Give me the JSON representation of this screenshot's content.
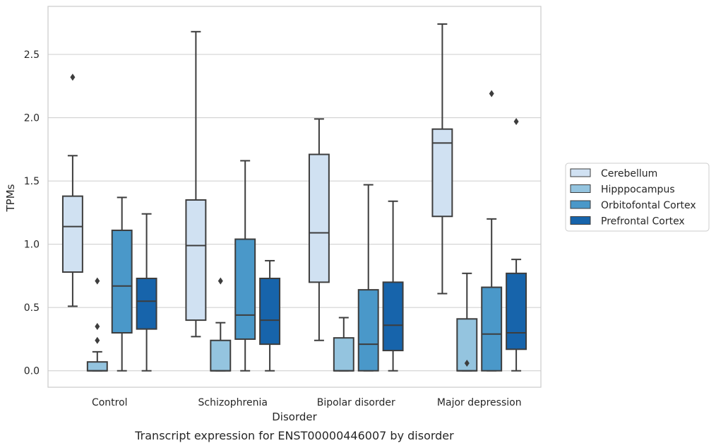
{
  "caption": "Transcript expression for ENST00000446007 by disorder",
  "chart_data": {
    "type": "box",
    "xlabel": "Disorder",
    "ylabel": "TPMs",
    "ylim": [
      -0.13,
      2.88
    ],
    "yticks": [
      0.0,
      0.5,
      1.0,
      1.5,
      2.0,
      2.5
    ],
    "ytick_labels": [
      "0.0",
      "0.5",
      "1.0",
      "1.5",
      "2.0",
      "2.5"
    ],
    "grid": "horizontal",
    "legend_position": "right",
    "categories": [
      "Control",
      "Schizophrenia",
      "Bipolar disorder",
      "Major depression"
    ],
    "series": [
      {
        "name": "Cerebellum",
        "color": "#d0e1f2",
        "boxes": [
          {
            "whislo": 0.51,
            "q1": 0.78,
            "med": 1.14,
            "q3": 1.38,
            "whishi": 1.7,
            "fliers": [
              2.32
            ]
          },
          {
            "whislo": 0.27,
            "q1": 0.4,
            "med": 0.99,
            "q3": 1.35,
            "whishi": 2.68,
            "fliers": []
          },
          {
            "whislo": 0.24,
            "q1": 0.7,
            "med": 1.09,
            "q3": 1.71,
            "whishi": 1.99,
            "fliers": []
          },
          {
            "whislo": 0.61,
            "q1": 1.22,
            "med": 1.8,
            "q3": 1.91,
            "whishi": 2.74,
            "fliers": []
          }
        ]
      },
      {
        "name": "Hipppocampus",
        "color": "#94c4df",
        "boxes": [
          {
            "whislo": 0.0,
            "q1": 0.0,
            "med": 0.0,
            "q3": 0.07,
            "whishi": 0.15,
            "fliers": [
              0.24,
              0.35,
              0.71
            ]
          },
          {
            "whislo": 0.0,
            "q1": 0.0,
            "med": 0.0,
            "q3": 0.24,
            "whishi": 0.38,
            "fliers": [
              0.71
            ]
          },
          {
            "whislo": 0.0,
            "q1": 0.0,
            "med": 0.0,
            "q3": 0.26,
            "whishi": 0.42,
            "fliers": []
          },
          {
            "whislo": 0.0,
            "q1": 0.0,
            "med": 0.0,
            "q3": 0.41,
            "whishi": 0.77,
            "fliers": [
              0.06
            ]
          }
        ]
      },
      {
        "name": "Orbitofontal Cortex",
        "color": "#4a98c9",
        "boxes": [
          {
            "whislo": 0.0,
            "q1": 0.3,
            "med": 0.67,
            "q3": 1.11,
            "whishi": 1.37,
            "fliers": []
          },
          {
            "whislo": 0.0,
            "q1": 0.25,
            "med": 0.44,
            "q3": 1.04,
            "whishi": 1.66,
            "fliers": []
          },
          {
            "whislo": 0.0,
            "q1": 0.0,
            "med": 0.21,
            "q3": 0.64,
            "whishi": 1.47,
            "fliers": []
          },
          {
            "whislo": 0.0,
            "q1": 0.0,
            "med": 0.29,
            "q3": 0.66,
            "whishi": 1.2,
            "fliers": [
              2.19
            ]
          }
        ]
      },
      {
        "name": "Prefrontal Cortex",
        "color": "#1764ab",
        "boxes": [
          {
            "whislo": 0.0,
            "q1": 0.33,
            "med": 0.55,
            "q3": 0.73,
            "whishi": 1.24,
            "fliers": []
          },
          {
            "whislo": 0.0,
            "q1": 0.21,
            "med": 0.4,
            "q3": 0.73,
            "whishi": 0.87,
            "fliers": []
          },
          {
            "whislo": 0.0,
            "q1": 0.16,
            "med": 0.36,
            "q3": 0.7,
            "whishi": 1.34,
            "fliers": []
          },
          {
            "whislo": 0.0,
            "q1": 0.17,
            "med": 0.3,
            "q3": 0.77,
            "whishi": 0.88,
            "fliers": [
              1.97
            ]
          }
        ]
      }
    ]
  }
}
